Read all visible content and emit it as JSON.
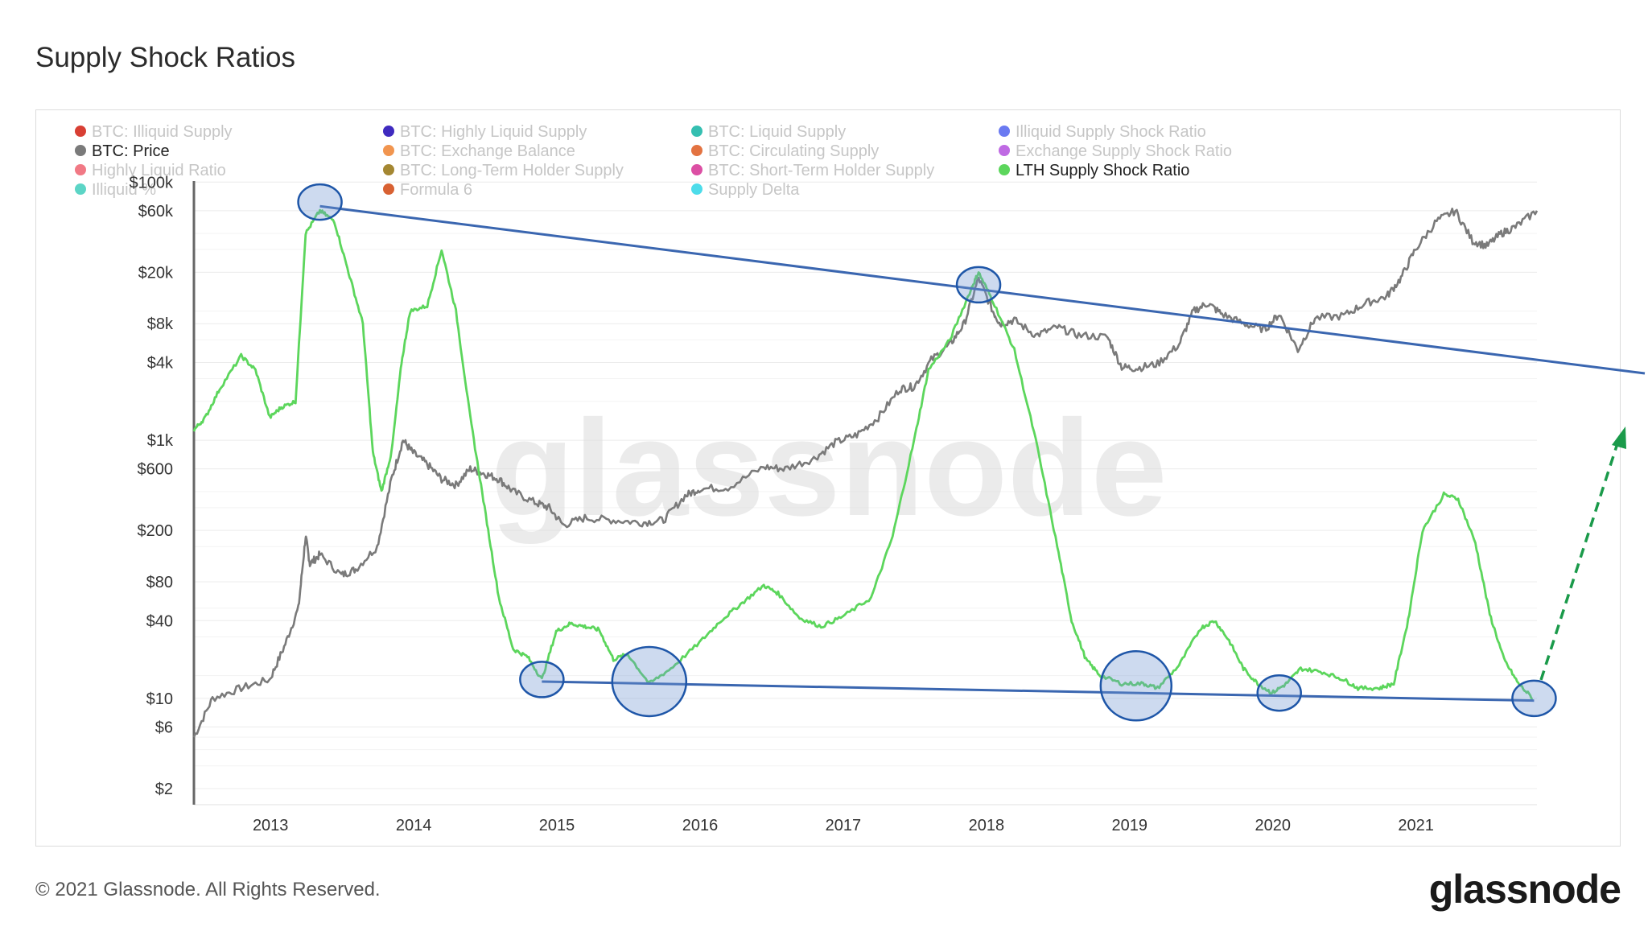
{
  "title": "Supply Shock Ratios",
  "footer": "© 2021 Glassnode. All Rights Reserved.",
  "brand": "glassnode",
  "watermark": "glassnode",
  "legend": [
    {
      "label": "BTC: Illiquid Supply",
      "color": "#d42a1e",
      "active": false
    },
    {
      "label": "BTC: Highly Liquid Supply",
      "color": "#2a13b8",
      "active": false
    },
    {
      "label": "BTC: Liquid Supply",
      "color": "#1fb8a8",
      "active": false
    },
    {
      "label": "Illiquid Supply Shock Ratio",
      "color": "#5a6cf0",
      "active": false
    },
    {
      "label": "BTC: Price",
      "color": "#7a7a7a",
      "active": true
    },
    {
      "label": "BTC: Exchange Balance",
      "color": "#f08a3c",
      "active": false
    },
    {
      "label": "BTC: Circulating Supply",
      "color": "#e0642c",
      "active": false
    },
    {
      "label": "Exchange Supply Shock Ratio",
      "color": "#b85ae0",
      "active": false
    },
    {
      "label": "Highly Liquid Ratio",
      "color": "#f06a78",
      "active": false
    },
    {
      "label": "BTC: Long-Term Holder Supply",
      "color": "#9a7a1c",
      "active": false
    },
    {
      "label": "BTC: Short-Term Holder Supply",
      "color": "#d83c9a",
      "active": false
    },
    {
      "label": "LTH Supply Shock Ratio",
      "color": "#5cd65c",
      "active": true
    },
    {
      "label": "Illiquid %",
      "color": "#4ad0c0",
      "active": false
    },
    {
      "label": "Formula 6",
      "color": "#d4501c",
      "active": false
    },
    {
      "label": "Supply Delta",
      "color": "#3ad8e8",
      "active": false
    }
  ],
  "chart_data": {
    "type": "line",
    "xlabel": "",
    "ylabel": "",
    "x_ticks": [
      "2013",
      "2014",
      "2015",
      "2016",
      "2017",
      "2018",
      "2019",
      "2020",
      "2021"
    ],
    "x_range": [
      2012.47,
      2021.85
    ],
    "y_scale": "log",
    "y_ticks": [
      "$100k",
      "$60k",
      "$20k",
      "$8k",
      "$4k",
      "$1k",
      "$600",
      "$200",
      "$80",
      "$40",
      "$10",
      "$6",
      "$2"
    ],
    "y_tick_values": [
      100000,
      60000,
      20000,
      8000,
      4000,
      1000,
      600,
      200,
      80,
      40,
      10,
      6,
      2
    ],
    "y_range": [
      1.5,
      130000
    ],
    "grid": true,
    "legend_position": "top",
    "series": [
      {
        "name": "BTC: Price",
        "color": "#7a7a7a",
        "points": [
          [
            2012.47,
            5
          ],
          [
            2012.6,
            10
          ],
          [
            2012.8,
            12
          ],
          [
            2013.0,
            14
          ],
          [
            2013.1,
            25
          ],
          [
            2013.2,
            50
          ],
          [
            2013.25,
            180
          ],
          [
            2013.28,
            110
          ],
          [
            2013.35,
            130
          ],
          [
            2013.5,
            90
          ],
          [
            2013.6,
            100
          ],
          [
            2013.75,
            150
          ],
          [
            2013.85,
            500
          ],
          [
            2013.93,
            1000
          ],
          [
            2014.0,
            800
          ],
          [
            2014.1,
            650
          ],
          [
            2014.2,
            500
          ],
          [
            2014.3,
            450
          ],
          [
            2014.4,
            600
          ],
          [
            2014.5,
            550
          ],
          [
            2014.6,
            500
          ],
          [
            2014.7,
            400
          ],
          [
            2014.85,
            330
          ],
          [
            2014.95,
            300
          ],
          [
            2015.05,
            220
          ],
          [
            2015.2,
            250
          ],
          [
            2015.4,
            240
          ],
          [
            2015.6,
            230
          ],
          [
            2015.75,
            240
          ],
          [
            2015.9,
            370
          ],
          [
            2016.0,
            420
          ],
          [
            2016.2,
            430
          ],
          [
            2016.45,
            620
          ],
          [
            2016.6,
            600
          ],
          [
            2016.8,
            720
          ],
          [
            2016.95,
            960
          ],
          [
            2017.1,
            1100
          ],
          [
            2017.25,
            1500
          ],
          [
            2017.4,
            2500
          ],
          [
            2017.5,
            2600
          ],
          [
            2017.62,
            4200
          ],
          [
            2017.75,
            5500
          ],
          [
            2017.85,
            8000
          ],
          [
            2017.95,
            18000
          ],
          [
            2018.05,
            10000
          ],
          [
            2018.1,
            8000
          ],
          [
            2018.2,
            8500
          ],
          [
            2018.35,
            6500
          ],
          [
            2018.5,
            7500
          ],
          [
            2018.65,
            6500
          ],
          [
            2018.85,
            6300
          ],
          [
            2018.95,
            3700
          ],
          [
            2019.05,
            3600
          ],
          [
            2019.2,
            3900
          ],
          [
            2019.35,
            5500
          ],
          [
            2019.45,
            10000
          ],
          [
            2019.55,
            11500
          ],
          [
            2019.65,
            9500
          ],
          [
            2019.8,
            8000
          ],
          [
            2019.95,
            7200
          ],
          [
            2020.05,
            9500
          ],
          [
            2020.18,
            5000
          ],
          [
            2020.3,
            8800
          ],
          [
            2020.5,
            9200
          ],
          [
            2020.65,
            11500
          ],
          [
            2020.8,
            13000
          ],
          [
            2020.9,
            18000
          ],
          [
            2021.0,
            30000
          ],
          [
            2021.15,
            50000
          ],
          [
            2021.28,
            60000
          ],
          [
            2021.4,
            35000
          ],
          [
            2021.5,
            32000
          ],
          [
            2021.6,
            40000
          ],
          [
            2021.7,
            45000
          ],
          [
            2021.85,
            60000
          ]
        ]
      },
      {
        "name": "LTH Supply Shock Ratio",
        "color": "#5cd65c",
        "points": [
          [
            2012.47,
            1200
          ],
          [
            2012.55,
            1500
          ],
          [
            2012.65,
            2500
          ],
          [
            2012.8,
            4500
          ],
          [
            2012.9,
            3500
          ],
          [
            2013.0,
            1500
          ],
          [
            2013.08,
            1800
          ],
          [
            2013.18,
            2000
          ],
          [
            2013.25,
            40000
          ],
          [
            2013.35,
            60000
          ],
          [
            2013.45,
            50000
          ],
          [
            2013.55,
            20000
          ],
          [
            2013.65,
            8000
          ],
          [
            2013.72,
            800
          ],
          [
            2013.78,
            400
          ],
          [
            2013.85,
            800
          ],
          [
            2013.92,
            4000
          ],
          [
            2013.98,
            10000
          ],
          [
            2014.1,
            11000
          ],
          [
            2014.2,
            30000
          ],
          [
            2014.3,
            10000
          ],
          [
            2014.4,
            1500
          ],
          [
            2014.5,
            300
          ],
          [
            2014.6,
            60
          ],
          [
            2014.7,
            24
          ],
          [
            2014.8,
            21
          ],
          [
            2014.9,
            14
          ],
          [
            2015.0,
            33
          ],
          [
            2015.1,
            38
          ],
          [
            2015.2,
            36
          ],
          [
            2015.3,
            34
          ],
          [
            2015.4,
            20
          ],
          [
            2015.5,
            22
          ],
          [
            2015.65,
            13
          ],
          [
            2015.8,
            17
          ],
          [
            2016.0,
            27
          ],
          [
            2016.15,
            40
          ],
          [
            2016.3,
            55
          ],
          [
            2016.45,
            75
          ],
          [
            2016.55,
            65
          ],
          [
            2016.7,
            42
          ],
          [
            2016.85,
            36
          ],
          [
            2017.0,
            43
          ],
          [
            2017.2,
            60
          ],
          [
            2017.35,
            180
          ],
          [
            2017.5,
            1000
          ],
          [
            2017.6,
            3500
          ],
          [
            2017.75,
            6000
          ],
          [
            2017.9,
            15000
          ],
          [
            2017.95,
            20000
          ],
          [
            2018.05,
            12000
          ],
          [
            2018.2,
            5000
          ],
          [
            2018.35,
            1000
          ],
          [
            2018.5,
            150
          ],
          [
            2018.6,
            40
          ],
          [
            2018.7,
            20
          ],
          [
            2018.8,
            15
          ],
          [
            2018.95,
            13
          ],
          [
            2019.1,
            13
          ],
          [
            2019.2,
            12
          ],
          [
            2019.35,
            18
          ],
          [
            2019.5,
            35
          ],
          [
            2019.6,
            40
          ],
          [
            2019.7,
            28
          ],
          [
            2019.8,
            17
          ],
          [
            2019.9,
            13
          ],
          [
            2020.0,
            11
          ],
          [
            2020.1,
            13
          ],
          [
            2020.2,
            17
          ],
          [
            2020.35,
            16
          ],
          [
            2020.5,
            14
          ],
          [
            2020.6,
            12
          ],
          [
            2020.75,
            12
          ],
          [
            2020.85,
            13
          ],
          [
            2020.95,
            40
          ],
          [
            2021.05,
            200
          ],
          [
            2021.2,
            380
          ],
          [
            2021.3,
            350
          ],
          [
            2021.42,
            160
          ],
          [
            2021.52,
            45
          ],
          [
            2021.62,
            20
          ],
          [
            2021.72,
            13
          ],
          [
            2021.82,
            10
          ]
        ]
      }
    ]
  }
}
